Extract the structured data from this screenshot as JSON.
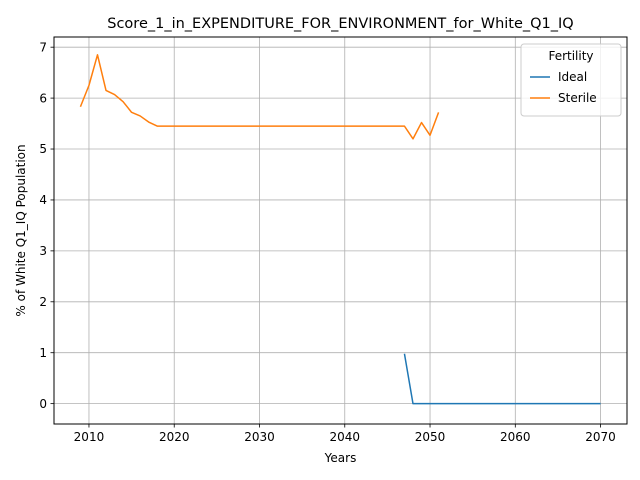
{
  "chart_data": {
    "type": "line",
    "title": "Score_1_in_EXPENDITURE_FOR_ENVIRONMENT_for_White_Q1_IQ",
    "xlabel": "Years",
    "ylabel": "% of White Q1_IQ Population",
    "xlim": [
      2005.9,
      2073.1
    ],
    "ylim": [
      -0.4,
      7.2
    ],
    "xticks": [
      2010,
      2020,
      2030,
      2040,
      2050,
      2060,
      2070
    ],
    "yticks": [
      0,
      1,
      2,
      3,
      4,
      5,
      6,
      7
    ],
    "grid": true,
    "legend": {
      "title": "Fertility",
      "position": "top-right"
    },
    "series": [
      {
        "name": "Ideal",
        "color": "#1f77b4",
        "x": [
          2047,
          2048,
          2049,
          2050,
          2051,
          2052,
          2053,
          2054,
          2055,
          2056,
          2057,
          2058,
          2059,
          2060,
          2061,
          2062,
          2063,
          2064,
          2065,
          2066,
          2067,
          2068,
          2069,
          2070
        ],
        "values": [
          0.98,
          0,
          0,
          0,
          0,
          0,
          0,
          0,
          0,
          0,
          0,
          0,
          0,
          0,
          0,
          0,
          0,
          0,
          0,
          0,
          0,
          0,
          0,
          0
        ]
      },
      {
        "name": "Sterile",
        "color": "#ff7f0e",
        "x": [
          2009,
          2010,
          2011,
          2012,
          2013,
          2014,
          2015,
          2016,
          2017,
          2018,
          2019,
          2020,
          2021,
          2022,
          2023,
          2024,
          2025,
          2026,
          2027,
          2028,
          2029,
          2030,
          2031,
          2032,
          2033,
          2034,
          2035,
          2036,
          2037,
          2038,
          2039,
          2040,
          2041,
          2042,
          2043,
          2044,
          2045,
          2046,
          2047,
          2048,
          2049,
          2050,
          2051
        ],
        "values": [
          5.83,
          6.25,
          6.85,
          6.15,
          6.07,
          5.93,
          5.72,
          5.65,
          5.53,
          5.45,
          5.45,
          5.45,
          5.45,
          5.45,
          5.45,
          5.45,
          5.45,
          5.45,
          5.45,
          5.45,
          5.45,
          5.45,
          5.45,
          5.45,
          5.45,
          5.45,
          5.45,
          5.45,
          5.45,
          5.45,
          5.45,
          5.45,
          5.45,
          5.45,
          5.45,
          5.45,
          5.45,
          5.45,
          5.45,
          5.2,
          5.52,
          5.27,
          5.72
        ]
      }
    ]
  }
}
